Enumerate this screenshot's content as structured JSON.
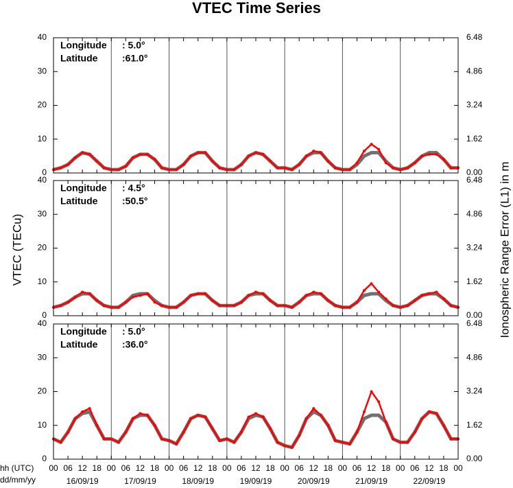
{
  "figure": {
    "title": "VTEC Time Series",
    "ylabel": "VTEC (TECu)",
    "y2label": "Ionospheric Range Error (L1) in m",
    "xlabel_hour": "hh (UTC)",
    "xlabel_date": "dd/mm/yy",
    "dates": [
      "16/09/19",
      "17/09/19",
      "18/09/19",
      "19/09/19",
      "20/09/19",
      "21/09/19",
      "22/09/19"
    ],
    "xlim": [
      0,
      168
    ],
    "xticks": [
      {
        "value": 0,
        "label": "00"
      },
      {
        "value": 6,
        "label": "06"
      },
      {
        "value": 12,
        "label": "12"
      },
      {
        "value": 18,
        "label": "18"
      },
      {
        "value": 24,
        "label": "00"
      },
      {
        "value": 30,
        "label": "06"
      },
      {
        "value": 36,
        "label": "12"
      },
      {
        "value": 42,
        "label": "18"
      },
      {
        "value": 48,
        "label": "00"
      },
      {
        "value": 54,
        "label": "06"
      },
      {
        "value": 60,
        "label": "12"
      },
      {
        "value": 66,
        "label": "18"
      },
      {
        "value": 72,
        "label": "00"
      },
      {
        "value": 78,
        "label": "06"
      },
      {
        "value": 84,
        "label": "12"
      },
      {
        "value": 90,
        "label": "18"
      },
      {
        "value": 96,
        "label": "00"
      },
      {
        "value": 102,
        "label": "06"
      },
      {
        "value": 108,
        "label": "12"
      },
      {
        "value": 114,
        "label": "18"
      },
      {
        "value": 120,
        "label": "00"
      },
      {
        "value": 126,
        "label": "06"
      },
      {
        "value": 132,
        "label": "12"
      },
      {
        "value": 138,
        "label": "18"
      },
      {
        "value": 144,
        "label": "00"
      },
      {
        "value": 150,
        "label": "06"
      },
      {
        "value": 156,
        "label": "12"
      },
      {
        "value": 162,
        "label": "18"
      },
      {
        "value": 168,
        "label": "00"
      }
    ]
  },
  "chart_data": [
    {
      "type": "line",
      "longitude_label": "Longitude",
      "longitude_value": ":   5.0°",
      "latitude_label": "Latitude",
      "latitude_value": ":61.0°",
      "ylim": [
        0,
        40
      ],
      "yticks": [
        0,
        10,
        20,
        30,
        40
      ],
      "y2lim": [
        0,
        6.48
      ],
      "y2ticks": [
        {
          "value": 0,
          "label": "0.00"
        },
        {
          "value": 1.62,
          "label": "1.62"
        },
        {
          "value": 3.24,
          "label": "3.24"
        },
        {
          "value": 4.86,
          "label": "4.86"
        },
        {
          "value": 6.48,
          "label": "6.48"
        }
      ],
      "x": [
        0,
        3,
        6,
        9,
        12,
        15,
        18,
        21,
        24,
        27,
        30,
        33,
        36,
        39,
        42,
        45,
        48,
        51,
        54,
        57,
        60,
        63,
        66,
        69,
        72,
        75,
        78,
        81,
        84,
        87,
        90,
        93,
        96,
        99,
        102,
        105,
        108,
        111,
        114,
        117,
        120,
        123,
        126,
        129,
        132,
        135,
        138,
        141,
        144,
        147,
        150,
        153,
        156,
        159,
        162,
        165,
        168
      ],
      "series": [
        {
          "color": "#707070",
          "values": [
            1,
            1.5,
            2.5,
            4.5,
            6,
            5.5,
            3.5,
            1.5,
            1,
            1,
            2,
            4.5,
            5.5,
            5.5,
            4,
            1.5,
            1,
            1,
            2.5,
            5,
            6,
            6,
            3.5,
            1.5,
            1,
            1,
            2.5,
            5,
            6,
            5.5,
            3.5,
            1.5,
            1.5,
            1,
            2.5,
            5,
            6,
            6,
            3.5,
            1.5,
            1,
            1,
            2.5,
            5,
            6,
            6,
            3.5,
            1.5,
            1,
            1.5,
            3,
            5,
            6,
            6,
            4,
            1.5,
            1.5
          ]
        },
        {
          "color": "#ff0000",
          "values": [
            1,
            1.5,
            2.5,
            4.5,
            6,
            5.5,
            3.5,
            1.5,
            1,
            1,
            2,
            4.5,
            5.5,
            5.5,
            4,
            1.5,
            1,
            1,
            2.5,
            5,
            6,
            6,
            3.5,
            1.5,
            1,
            1,
            2.5,
            5,
            6,
            5.5,
            3.5,
            1.5,
            1.5,
            1,
            2.5,
            5,
            6.5,
            6,
            3.5,
            1.5,
            1,
            1,
            3,
            6.5,
            8.5,
            7,
            3,
            1.5,
            1,
            1.5,
            3,
            5,
            5.5,
            5.5,
            4,
            1.5,
            1.5
          ]
        }
      ]
    },
    {
      "type": "line",
      "longitude_label": "Longitude",
      "longitude_value": ":   4.5°",
      "latitude_label": "Latitude",
      "latitude_value": ":50.5°",
      "ylim": [
        0,
        40
      ],
      "yticks": [
        0,
        10,
        20,
        30,
        40
      ],
      "y2lim": [
        0,
        6.48
      ],
      "y2ticks": [
        {
          "value": 0,
          "label": "0.00"
        },
        {
          "value": 1.62,
          "label": "1.62"
        },
        {
          "value": 3.24,
          "label": "3.24"
        },
        {
          "value": 4.86,
          "label": "4.86"
        },
        {
          "value": 6.48,
          "label": "6.48"
        }
      ],
      "x": [
        0,
        3,
        6,
        9,
        12,
        15,
        18,
        21,
        24,
        27,
        30,
        33,
        36,
        39,
        42,
        45,
        48,
        51,
        54,
        57,
        60,
        63,
        66,
        69,
        72,
        75,
        78,
        81,
        84,
        87,
        90,
        93,
        96,
        99,
        102,
        105,
        108,
        111,
        114,
        117,
        120,
        123,
        126,
        129,
        132,
        135,
        138,
        141,
        144,
        147,
        150,
        153,
        156,
        159,
        162,
        165,
        168
      ],
      "series": [
        {
          "color": "#707070",
          "values": [
            2.5,
            3,
            4,
            5.5,
            6.5,
            6.5,
            4.5,
            3,
            2.5,
            2.5,
            4,
            6,
            6.5,
            6.5,
            4.5,
            3,
            2.5,
            2.5,
            4,
            6,
            6.5,
            6.5,
            4.5,
            3,
            3,
            3,
            4,
            6,
            6.5,
            6.5,
            4.5,
            3,
            3,
            2.5,
            4,
            6,
            6.5,
            6.5,
            4.5,
            3,
            2.5,
            2.5,
            4,
            6,
            6.5,
            6.5,
            4.5,
            3,
            2.5,
            3,
            4.5,
            6,
            6.5,
            6.5,
            5,
            3,
            2.5
          ]
        },
        {
          "color": "#ff0000",
          "values": [
            2.5,
            3,
            4,
            5.5,
            7,
            6.5,
            4.5,
            3,
            2.5,
            2.5,
            4,
            5.5,
            6,
            6.5,
            4,
            3,
            2.5,
            2.5,
            4,
            6,
            6.5,
            6.5,
            4.5,
            3,
            3,
            3,
            4,
            6,
            7,
            6.5,
            4.5,
            3,
            3,
            2.5,
            4,
            6,
            7,
            6.5,
            4.5,
            3,
            2.5,
            2.5,
            4,
            7.5,
            9.5,
            7,
            5,
            3,
            2.5,
            3,
            4.5,
            6,
            6.5,
            7,
            5,
            3,
            2.5
          ]
        }
      ]
    },
    {
      "type": "line",
      "longitude_label": "Longitude",
      "longitude_value": ":   5.0°",
      "latitude_label": "Latitude",
      "latitude_value": ":36.0°",
      "ylim": [
        0,
        40
      ],
      "yticks": [
        0,
        10,
        20,
        30,
        40
      ],
      "y2lim": [
        0,
        6.48
      ],
      "y2ticks": [
        {
          "value": 0,
          "label": "0.00"
        },
        {
          "value": 1.62,
          "label": "1.62"
        },
        {
          "value": 3.24,
          "label": "3.24"
        },
        {
          "value": 4.86,
          "label": "4.86"
        },
        {
          "value": 6.48,
          "label": "6.48"
        }
      ],
      "x": [
        0,
        3,
        6,
        9,
        12,
        15,
        18,
        21,
        24,
        27,
        30,
        33,
        36,
        39,
        42,
        45,
        48,
        51,
        54,
        57,
        60,
        63,
        66,
        69,
        72,
        75,
        78,
        81,
        84,
        87,
        90,
        93,
        96,
        99,
        102,
        105,
        108,
        111,
        114,
        117,
        120,
        123,
        126,
        129,
        132,
        135,
        138,
        141,
        144,
        147,
        150,
        153,
        156,
        159,
        162,
        165,
        168
      ],
      "series": [
        {
          "color": "#707070",
          "values": [
            6,
            5,
            8,
            12,
            13.5,
            14,
            10,
            6,
            6,
            5,
            8,
            12,
            13,
            13,
            10,
            6,
            5.5,
            4.5,
            8,
            12,
            13,
            12.5,
            9,
            5.5,
            6,
            5,
            8,
            12,
            13,
            12.5,
            9,
            5,
            4,
            3.5,
            7,
            12,
            14,
            13,
            10,
            5.5,
            5,
            4.5,
            8,
            12,
            13,
            13,
            11,
            6,
            5,
            5,
            8,
            12,
            14,
            13.5,
            10,
            6,
            6
          ]
        },
        {
          "color": "#ff0000",
          "values": [
            6,
            5,
            8,
            12,
            14,
            15,
            10,
            6,
            6,
            5,
            8,
            12,
            13.5,
            13,
            10,
            6,
            5.5,
            4.5,
            8,
            12,
            13,
            12.5,
            9,
            5.5,
            6,
            5,
            8,
            12.5,
            13.5,
            12.5,
            9,
            5,
            4,
            3.5,
            7,
            12,
            15,
            13,
            10,
            5.5,
            5,
            4.5,
            8,
            14,
            20,
            17,
            11,
            6,
            5,
            5,
            8,
            12,
            14,
            13.5,
            10,
            6,
            6
          ]
        }
      ]
    }
  ]
}
